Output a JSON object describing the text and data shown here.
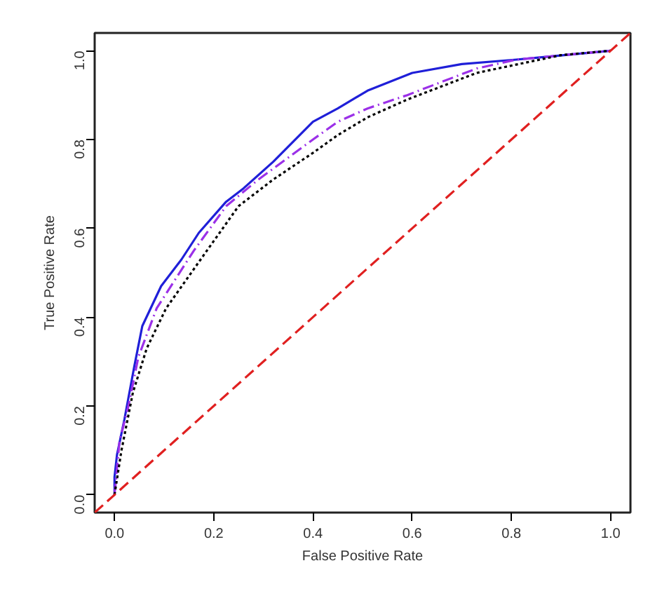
{
  "chart_data": {
    "type": "line",
    "xlabel": "False Positive Rate",
    "ylabel": "True Positive Rate",
    "xlim": [
      -0.04,
      1.04
    ],
    "ylim": [
      -0.04,
      1.04
    ],
    "xticks": [
      {
        "value": 0,
        "label": "0.0"
      },
      0.2,
      0.4,
      0.6,
      0.8,
      {
        "value": 1,
        "label": "1.0"
      }
    ],
    "yticks": [
      {
        "value": 0,
        "label": "0.0"
      },
      0.2,
      0.4,
      0.6,
      0.8,
      {
        "value": 1,
        "label": "1.0"
      }
    ],
    "grid": false,
    "series": [
      {
        "color": "#1f1fd8",
        "line_style": "solid",
        "x": [
          0,
          0,
          0.005,
          0.02,
          0.04,
          0.056,
          0.094,
          0.135,
          0.17,
          0.225,
          0.26,
          0.32,
          0.4,
          0.45,
          0.51,
          0.6,
          0.7,
          0.81,
          1
        ],
        "values": [
          0,
          0.04,
          0.09,
          0.17,
          0.29,
          0.38,
          0.47,
          0.53,
          0.59,
          0.66,
          0.69,
          0.75,
          0.84,
          0.87,
          0.91,
          0.95,
          0.97,
          0.98,
          1
        ]
      },
      {
        "color": "#9b30e8",
        "line_style": "dashdot",
        "x": [
          0,
          0.01,
          0.028,
          0.048,
          0.085,
          0.16,
          0.225,
          0.29,
          0.4,
          0.45,
          0.51,
          0.59,
          0.73,
          0.81,
          1
        ],
        "values": [
          0,
          0.12,
          0.2,
          0.31,
          0.42,
          0.55,
          0.65,
          0.71,
          0.8,
          0.84,
          0.87,
          0.9,
          0.96,
          0.98,
          1
        ]
      },
      {
        "color": "#000000",
        "line_style": "dotted",
        "x": [
          0,
          0.014,
          0.037,
          0.065,
          0.104,
          0.18,
          0.25,
          0.32,
          0.4,
          0.45,
          0.51,
          0.59,
          0.73,
          0.9,
          1
        ],
        "values": [
          0,
          0.1,
          0.23,
          0.33,
          0.42,
          0.54,
          0.65,
          0.71,
          0.77,
          0.81,
          0.85,
          0.89,
          0.95,
          0.99,
          1
        ]
      },
      {
        "color": "#e02020",
        "line_style": "dashed",
        "x": [
          -0.04,
          1.04
        ],
        "values": [
          -0.04,
          1.04
        ]
      }
    ]
  }
}
